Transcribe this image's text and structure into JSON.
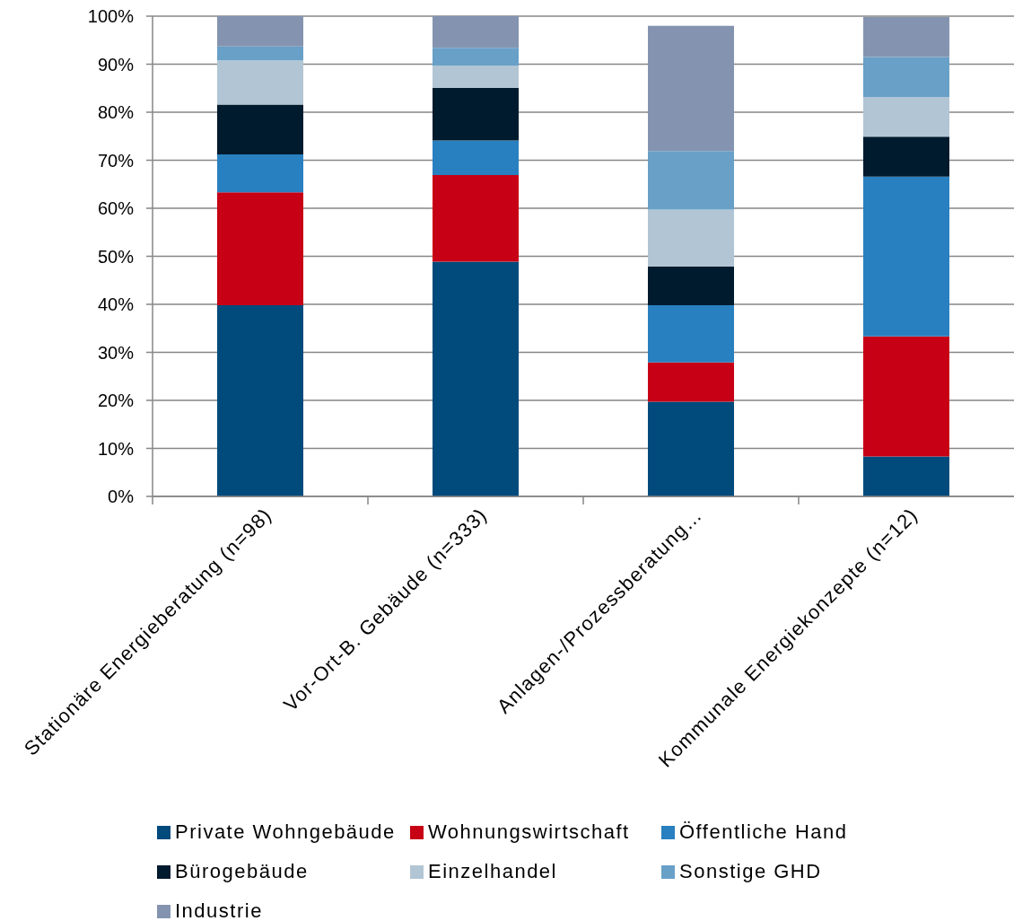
{
  "chart_data": {
    "type": "bar",
    "stacked": true,
    "categories": [
      "Stationäre Energieberatung (n=98)",
      "Vor-Ort-B. Gebäude (n=333)",
      "Anlagen-/Prozessberatung…",
      "Kommunale Energiekonzepte (n=12)"
    ],
    "series": [
      {
        "name": "Private Wohngebäude",
        "color": "#004a7c",
        "values": [
          39.8,
          48.9,
          19.7,
          8.3
        ]
      },
      {
        "name": "Wohnungswirtschaft",
        "color": "#c80016",
        "values": [
          23.5,
          18.0,
          8.2,
          25.0
        ]
      },
      {
        "name": "Öffentliche Hand",
        "color": "#2980c0",
        "values": [
          7.9,
          7.2,
          11.9,
          33.3
        ]
      },
      {
        "name": "Bürogebäude",
        "color": "#001a2e",
        "values": [
          10.4,
          11.0,
          8.1,
          8.3
        ]
      },
      {
        "name": "Einzelhandel",
        "color": "#b2c5d4",
        "values": [
          9.2,
          4.6,
          11.8,
          8.3
        ]
      },
      {
        "name": "Sonstige GHD",
        "color": "#68a0c8",
        "values": [
          2.9,
          3.7,
          12.2,
          8.3
        ]
      },
      {
        "name": "Industrie",
        "color": "#8494b0",
        "values": [
          6.3,
          6.6,
          26.1,
          8.3
        ]
      }
    ],
    "ylim": [
      0,
      100
    ],
    "yticks": [
      {
        "value": 0,
        "label": "0%"
      },
      {
        "value": 10,
        "label": "10%"
      },
      {
        "value": 20,
        "label": "20%"
      },
      {
        "value": 30,
        "label": "30%"
      },
      {
        "value": 40,
        "label": "40%"
      },
      {
        "value": 50,
        "label": "50%"
      },
      {
        "value": 60,
        "label": "60%"
      },
      {
        "value": 70,
        "label": "70%"
      },
      {
        "value": 80,
        "label": "80%"
      },
      {
        "value": 90,
        "label": "90%"
      },
      {
        "value": 100,
        "label": "100%"
      }
    ],
    "grid": "y",
    "legend": "bottom"
  }
}
